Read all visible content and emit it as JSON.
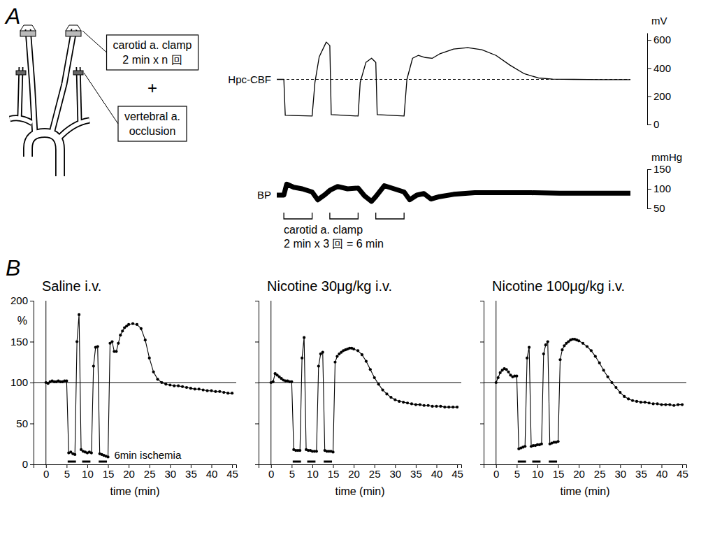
{
  "figure": {
    "panel_labels": [
      "A",
      "B"
    ]
  },
  "diagram": {
    "boxes": [
      {
        "lines": [
          "carotid a. clamp",
          "2 min x n 回"
        ]
      },
      {
        "lines": [
          "vertebral a.",
          "occlusion"
        ]
      }
    ],
    "plus": "+"
  },
  "chart_data": [
    {
      "type": "line",
      "label": "Hpc-CBF",
      "y_unit": "mV",
      "x": [
        0,
        0.5,
        0.6,
        2.5,
        2.7,
        3.0,
        3.5,
        3.75,
        3.85,
        5.75,
        5.9,
        6.3,
        6.7,
        7,
        7.1,
        9,
        9.2,
        9.6,
        10,
        10.5,
        11,
        11.5,
        12.5,
        13.5,
        14.5,
        15.5,
        16.5,
        17.5,
        18.5,
        19.5,
        21,
        23,
        25
      ],
      "values": [
        320,
        320,
        65,
        60,
        300,
        480,
        585,
        560,
        70,
        60,
        300,
        440,
        470,
        440,
        70,
        60,
        320,
        470,
        490,
        475,
        470,
        500,
        535,
        545,
        530,
        490,
        420,
        360,
        330,
        322,
        320,
        318,
        318
      ],
      "color": "#000000",
      "xlim": [
        0,
        25
      ],
      "ylim": [
        0,
        650
      ],
      "yticks": [
        0,
        200,
        400,
        600
      ],
      "tick_labels": "y",
      "reference_y": 320
    },
    {
      "type": "line",
      "label": "BP",
      "y_unit": "mmHg",
      "x": [
        0,
        0.5,
        0.7,
        1.2,
        1.8,
        2.5,
        2.9,
        3.4,
        3.75,
        4.3,
        5,
        5.75,
        6.2,
        6.7,
        7,
        7.6,
        8.3,
        9,
        9.4,
        9.9,
        10.4,
        10.9,
        11.5,
        12.5,
        14,
        16,
        18,
        20,
        22,
        25
      ],
      "values": [
        84,
        84,
        112,
        104,
        100,
        92,
        72,
        85,
        96,
        106,
        100,
        102,
        82,
        68,
        80,
        108,
        100,
        92,
        72,
        84,
        88,
        74,
        80,
        86,
        90,
        90,
        90,
        89,
        89,
        89
      ],
      "color": "#000000",
      "xlim": [
        0,
        25
      ],
      "ylim": [
        50,
        150
      ],
      "yticks": [
        50,
        100,
        150
      ],
      "tick_labels": "y",
      "clamp_periods": [
        [
          0.5,
          2.5
        ],
        [
          3.75,
          5.75
        ],
        [
          7,
          9
        ]
      ],
      "annotation": [
        "carotid a. clamp",
        "2 min x 3 回 = 6 min"
      ]
    },
    {
      "type": "line",
      "title": "Saline i.v.",
      "y_label": "%",
      "x_label": "time (min)",
      "x": [
        0,
        0.5,
        1,
        1.5,
        2,
        2.5,
        3,
        3.5,
        4,
        4.5,
        5,
        5.5,
        6,
        6.5,
        7,
        7.5,
        8,
        8.5,
        9,
        9.5,
        10,
        10.5,
        11,
        11.5,
        12,
        12.5,
        13,
        13.5,
        14,
        14.5,
        15,
        15.5,
        16,
        16.5,
        17,
        17.5,
        18,
        18.5,
        19,
        19.5,
        20,
        21,
        22,
        23,
        24,
        25,
        26,
        27,
        28,
        29,
        30,
        31,
        32,
        33,
        34,
        35,
        36,
        37,
        38,
        39,
        40,
        41,
        42,
        43,
        44,
        45
      ],
      "values": [
        100,
        99,
        101,
        102,
        101,
        101,
        102,
        101,
        101,
        102,
        102,
        14,
        15,
        13,
        12,
        150,
        183,
        18,
        16,
        15,
        14,
        15,
        14,
        120,
        143,
        144,
        13,
        12,
        11,
        10,
        9,
        148,
        150,
        138,
        138,
        148,
        158,
        163,
        167,
        169,
        171,
        172,
        171,
        166,
        152,
        130,
        113,
        104,
        100,
        98,
        97,
        96,
        96,
        95,
        94,
        93,
        92,
        92,
        91,
        90,
        90,
        89,
        89,
        88,
        87,
        87
      ],
      "color": "#000000",
      "marker": "circle",
      "xlim": [
        -3,
        46
      ],
      "ylim": [
        0,
        200
      ],
      "xticks": [
        0,
        5,
        10,
        15,
        20,
        25,
        30,
        35,
        40,
        45
      ],
      "yticks": [
        0,
        50,
        100,
        150,
        200
      ],
      "tick_labels": true,
      "reference_x": 0,
      "reference_y": 100,
      "ischemia_periods": [
        [
          5.25,
          7.25
        ],
        [
          8.75,
          10.75
        ],
        [
          12.75,
          14.75
        ]
      ],
      "annotation": "6min ischemia"
    },
    {
      "type": "line",
      "title": "Nicotine 30μg/kg i.v.",
      "x_label": "time (min)",
      "x": [
        0,
        0.5,
        1,
        1.5,
        2,
        2.5,
        3,
        3.5,
        4,
        4.5,
        5,
        5.5,
        6,
        6.5,
        7,
        7.5,
        8,
        8.5,
        9,
        9.5,
        10,
        10.5,
        11,
        11.5,
        12,
        12.5,
        13,
        13.5,
        14,
        14.5,
        15,
        15.5,
        16,
        16.5,
        17,
        17.5,
        18,
        18.5,
        19,
        19.5,
        20,
        21,
        22,
        23,
        24,
        25,
        26,
        27,
        28,
        29,
        30,
        31,
        32,
        33,
        34,
        35,
        36,
        37,
        38,
        39,
        40,
        41,
        42,
        43,
        44,
        45
      ],
      "values": [
        100,
        101,
        111,
        109,
        107,
        105,
        103,
        102,
        102,
        101,
        101,
        18,
        17,
        17,
        17,
        130,
        155,
        18,
        17,
        17,
        16,
        16,
        16,
        120,
        135,
        137,
        17,
        16,
        16,
        16,
        15,
        125,
        132,
        135,
        137,
        139,
        140,
        141,
        142,
        142,
        141,
        139,
        134,
        126,
        116,
        106,
        98,
        91,
        86,
        82,
        79,
        77,
        76,
        75,
        74,
        73,
        73,
        72,
        72,
        71,
        71,
        71,
        70,
        70,
        70,
        70
      ],
      "color": "#000000",
      "marker": "circle",
      "xlim": [
        -3,
        46
      ],
      "ylim": [
        0,
        200
      ],
      "xticks": [
        0,
        5,
        10,
        15,
        20,
        25,
        30,
        35,
        40,
        45
      ],
      "yticks": [
        0,
        50,
        100,
        150,
        200
      ],
      "tick_labels": "x",
      "reference_x": 0,
      "reference_y": 100,
      "ischemia_periods": [
        [
          5.25,
          7.25
        ],
        [
          8.75,
          10.75
        ],
        [
          12.75,
          14.75
        ]
      ]
    },
    {
      "type": "line",
      "title": "Nicotine 100μg/kg i.v.",
      "x_label": "time (min)",
      "x": [
        0,
        0.5,
        1,
        1.5,
        2,
        2.5,
        3,
        3.5,
        4,
        4.5,
        5,
        5.5,
        6,
        6.5,
        7,
        7.5,
        8,
        8.5,
        9,
        9.5,
        10,
        10.5,
        11,
        11.5,
        12,
        12.5,
        13,
        13.5,
        14,
        14.5,
        15,
        15.5,
        16,
        16.5,
        17,
        17.5,
        18,
        18.5,
        19,
        19.5,
        20,
        21,
        22,
        23,
        24,
        25,
        26,
        27,
        28,
        29,
        30,
        31,
        32,
        33,
        34,
        35,
        36,
        37,
        38,
        39,
        40,
        41,
        42,
        43,
        44,
        45
      ],
      "values": [
        100,
        106,
        112,
        115,
        117,
        116,
        113,
        109,
        107,
        108,
        108,
        19,
        20,
        21,
        22,
        130,
        143,
        22,
        23,
        23,
        24,
        24,
        25,
        135,
        146,
        150,
        25,
        26,
        27,
        27,
        28,
        128,
        140,
        145,
        148,
        150,
        152,
        153,
        153,
        152,
        151,
        148,
        144,
        139,
        132,
        124,
        115,
        107,
        100,
        94,
        88,
        83,
        80,
        78,
        77,
        76,
        76,
        75,
        74,
        74,
        73,
        73,
        73,
        72,
        73,
        73
      ],
      "color": "#000000",
      "marker": "circle",
      "xlim": [
        -3,
        46
      ],
      "ylim": [
        0,
        200
      ],
      "xticks": [
        0,
        5,
        10,
        15,
        20,
        25,
        30,
        35,
        40,
        45
      ],
      "yticks": [
        0,
        50,
        100,
        150,
        200
      ],
      "tick_labels": "x",
      "reference_x": 0,
      "reference_y": 100,
      "ischemia_periods": [
        [
          5.25,
          7.25
        ],
        [
          8.75,
          10.75
        ],
        [
          12.75,
          14.75
        ]
      ]
    }
  ]
}
